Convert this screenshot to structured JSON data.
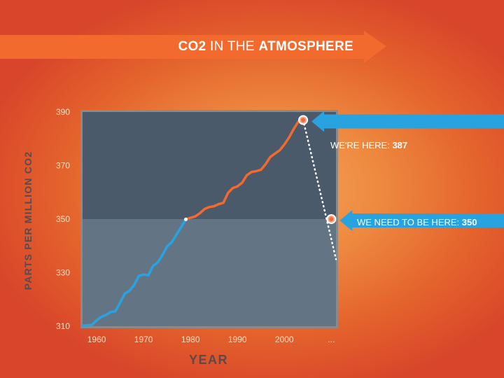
{
  "title": {
    "part1": "CO2",
    "part2": " IN THE ",
    "part3": "ATMOSPHERE"
  },
  "colors": {
    "banner": "#f26a2e",
    "plot_upper": "#4a5a6a",
    "plot_lower": "#637585",
    "plot_border": "#8a8a8a",
    "line_blue": "#29a3e0",
    "line_orange": "#f26a2e",
    "callout_blue": "#29a3e0"
  },
  "callouts": {
    "current_label": "WE'RE HERE: ",
    "current_value": "387",
    "target_label": "WE NEED TO BE HERE: ",
    "target_value": "350"
  },
  "chart_data": {
    "type": "line",
    "title": "CO2 IN THE ATMOSPHERE",
    "xlabel": "YEAR",
    "ylabel": "PARTS PER MILLION CO2",
    "xlim": [
      1957,
      2011
    ],
    "ylim": [
      310,
      390
    ],
    "x_ticks": [
      1960,
      1970,
      1980,
      1990,
      2000,
      "..."
    ],
    "y_ticks": [
      310,
      330,
      350,
      370,
      390
    ],
    "threshold": 350,
    "series": [
      {
        "color": "#29a3e0",
        "x": [
          1957,
          1959,
          1960,
          1961,
          1962,
          1963,
          1964,
          1965,
          1966,
          1967,
          1968,
          1969,
          1970,
          1971,
          1972,
          1973,
          1974,
          1975,
          1976,
          1977,
          1978,
          1979
        ],
        "y": [
          310.2,
          310.5,
          312.2,
          313.5,
          314.2,
          315.3,
          315.6,
          318.8,
          322.2,
          323.2,
          325.4,
          328.8,
          329.3,
          329.0,
          332.5,
          333.8,
          336.5,
          339.8,
          341.4,
          344.2,
          347.0,
          349.9
        ]
      },
      {
        "color": "#f26a2e",
        "x": [
          1979,
          1981,
          1982,
          1983,
          1984,
          1985,
          1986,
          1987,
          1988,
          1989,
          1990,
          1991,
          1992,
          1993,
          1994,
          1995,
          1996,
          1997,
          1998,
          1999,
          2000,
          2001,
          2002,
          2003
        ],
        "y": [
          350.0,
          351.0,
          352.2,
          353.8,
          354.5,
          354.8,
          355.6,
          356.1,
          359.8,
          361.6,
          362.2,
          363.6,
          366.4,
          367.6,
          367.9,
          368.4,
          370.5,
          373.2,
          374.5,
          375.7,
          377.9,
          380.5,
          383.7,
          386.5
        ]
      }
    ],
    "points": [
      {
        "x": 2004,
        "y": 387
      },
      {
        "x": 2010,
        "y": 350
      }
    ],
    "projection": {
      "x": [
        2004,
        2009,
        2011
      ],
      "y": [
        387,
        350,
        335
      ]
    }
  }
}
